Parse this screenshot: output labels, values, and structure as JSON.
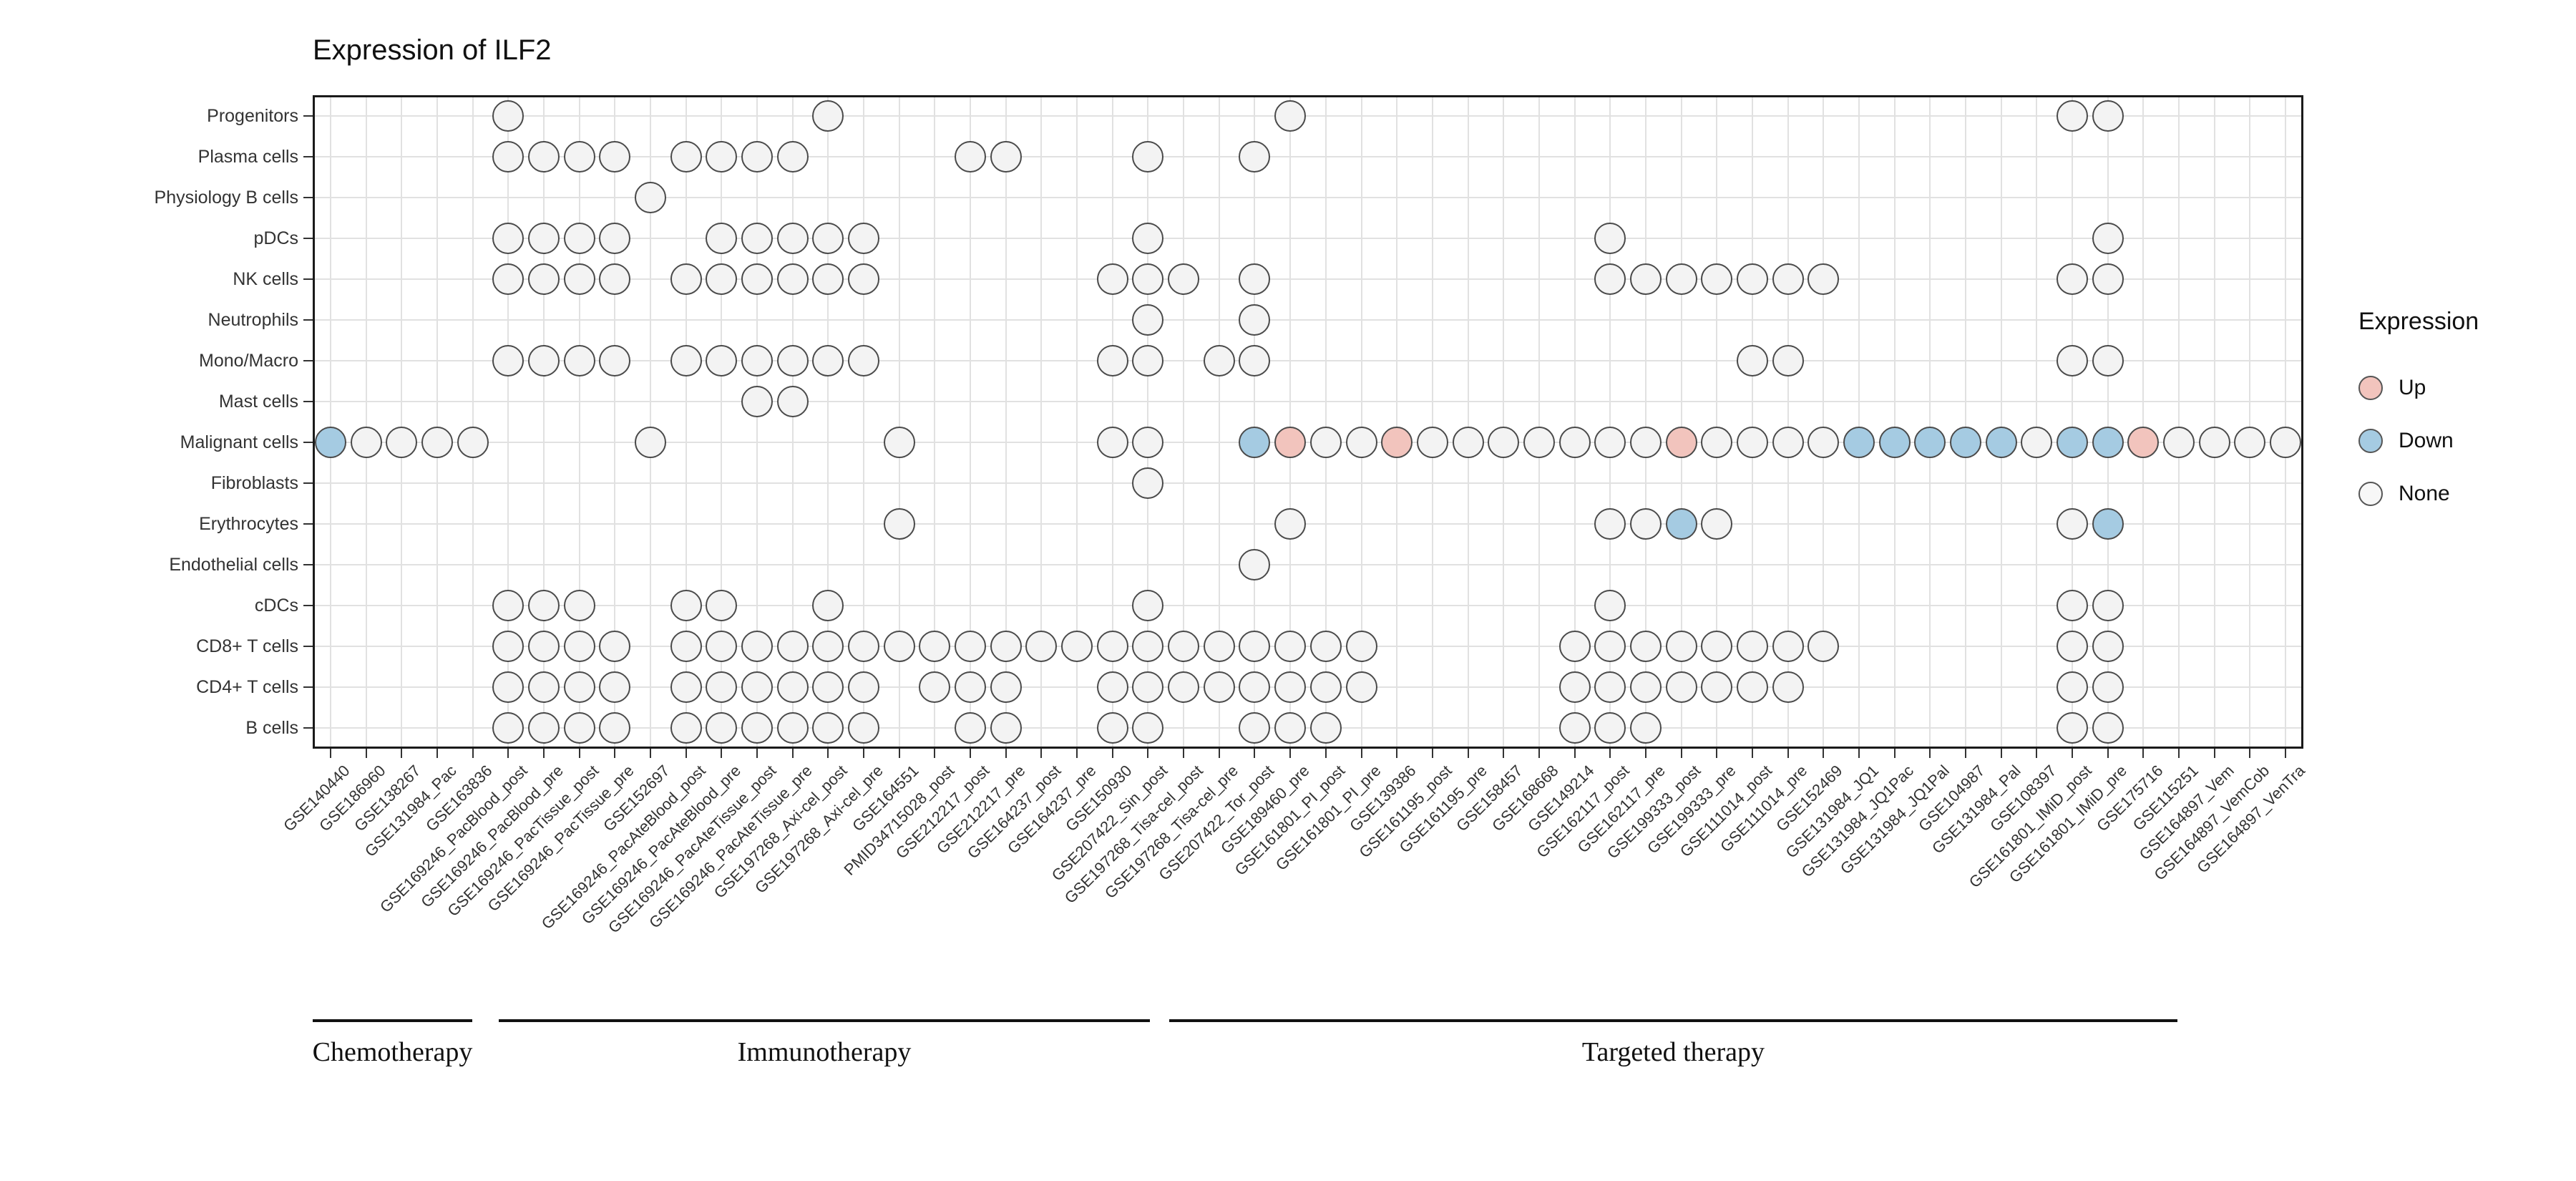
{
  "title": "Expression of ILF2",
  "legend": {
    "title": "Expression",
    "items": [
      {
        "label": "Up",
        "state": "up",
        "color": "#f2c4bd"
      },
      {
        "label": "Down",
        "state": "down",
        "color": "#a5cbe2"
      },
      {
        "label": "None",
        "state": "none",
        "color": "#f7f7f7"
      }
    ],
    "position": "right"
  },
  "colors": {
    "up": "#f2c4bd",
    "down": "#a5cbe2",
    "none": "#f3f3f3",
    "circle_border": "#4a4a4a",
    "grid": "#e1e1e1"
  },
  "chart_data": {
    "type": "scatter",
    "title": "Expression of ILF2",
    "xlabel": "",
    "ylabel": "",
    "grid": "on",
    "legend_position": "right",
    "y_categories": [
      "Progenitors",
      "Plasma cells",
      "Physiology B cells",
      "pDCs",
      "NK cells",
      "Neutrophils",
      "Mono/Macro",
      "Mast cells",
      "Malignant cells",
      "Fibroblasts",
      "Erythrocytes",
      "Endothelial cells",
      "cDCs",
      "CD8+ T cells",
      "CD4+ T cells",
      "B cells"
    ],
    "x_categories": [
      "GSE140440",
      "GSE186960",
      "GSE138267",
      "GSE131984_Pac",
      "GSE163836",
      "GSE169246_PacBlood_post",
      "GSE169246_PacBlood_pre",
      "GSE169246_PacTissue_post",
      "GSE169246_PacTissue_pre",
      "GSE152697",
      "GSE169246_PacAteBlood_post",
      "GSE169246_PacAteBlood_pre",
      "GSE169246_PacAteTissue_post",
      "GSE169246_PacAteTissue_pre",
      "GSE197268_Axi-cel_post",
      "GSE197268_Axi-cel_pre",
      "GSE164551",
      "PMID34715028_post",
      "GSE212217_post",
      "GSE212217_pre",
      "GSE164237_post",
      "GSE164237_pre",
      "GSE150930",
      "GSE207422_Sin_post",
      "GSE197268_Tisa-cel_post",
      "GSE197268_Tisa-cel_pre",
      "GSE207422_Tor_post",
      "GSE189460_pre",
      "GSE161801_PI_post",
      "GSE161801_PI_pre",
      "GSE139386",
      "GSE161195_post",
      "GSE161195_pre",
      "GSE158457",
      "GSE168668",
      "GSE149214",
      "GSE162117_post",
      "GSE162117_pre",
      "GSE199333_post",
      "GSE199333_pre",
      "GSE111014_post",
      "GSE111014_pre",
      "GSE152469",
      "GSE131984_JQ1",
      "GSE131984_JQ1Pac",
      "GSE131984_JQ1Pal",
      "GSE104987",
      "GSE131984_Pal",
      "GSE108397",
      "GSE161801_IMiD_post",
      "GSE161801_IMiD_pre",
      "GSE175716",
      "GSE115251",
      "GSE164897_Vem",
      "GSE164897_VemCob",
      "GSE164897_VenTra"
    ],
    "groups": [
      {
        "label": "Chemotherapy",
        "cols": [
          1,
          5
        ]
      },
      {
        "label": "Immunotherapy",
        "cols": [
          6,
          27
        ]
      },
      {
        "label": "Targeted therapy",
        "cols": [
          28,
          56
        ]
      }
    ],
    "points": [
      {
        "row": "Progenitors",
        "none": [
          6,
          15,
          28,
          50,
          51
        ],
        "up": [],
        "down": []
      },
      {
        "row": "Plasma cells",
        "none": [
          6,
          7,
          8,
          9,
          11,
          12,
          13,
          14,
          19,
          20,
          24,
          27
        ],
        "up": [],
        "down": []
      },
      {
        "row": "Physiology B cells",
        "none": [
          10
        ],
        "up": [],
        "down": []
      },
      {
        "row": "pDCs",
        "none": [
          6,
          7,
          8,
          9,
          12,
          13,
          14,
          15,
          16,
          24,
          37,
          51
        ],
        "up": [],
        "down": []
      },
      {
        "row": "NK cells",
        "none": [
          6,
          7,
          8,
          9,
          11,
          12,
          13,
          14,
          15,
          16,
          23,
          24,
          25,
          27,
          37,
          38,
          39,
          40,
          41,
          42,
          43,
          50,
          51
        ],
        "up": [],
        "down": []
      },
      {
        "row": "Neutrophils",
        "none": [
          24,
          27
        ],
        "up": [],
        "down": []
      },
      {
        "row": "Mono/Macro",
        "none": [
          6,
          7,
          8,
          9,
          11,
          12,
          13,
          14,
          15,
          16,
          23,
          24,
          26,
          27,
          41,
          42,
          50,
          51
        ],
        "up": [],
        "down": []
      },
      {
        "row": "Mast cells",
        "none": [
          13,
          14
        ],
        "up": [],
        "down": []
      },
      {
        "row": "Malignant cells",
        "none": [
          2,
          3,
          4,
          5,
          10,
          17,
          23,
          24,
          29,
          30,
          32,
          33,
          34,
          35,
          36,
          37,
          38,
          40,
          41,
          42,
          43,
          49,
          53,
          54,
          55,
          56
        ],
        "up": [
          28,
          31,
          39,
          52
        ],
        "down": [
          1,
          27,
          44,
          45,
          46,
          47,
          48,
          50,
          51
        ]
      },
      {
        "row": "Fibroblasts",
        "none": [
          24
        ],
        "up": [],
        "down": []
      },
      {
        "row": "Erythrocytes",
        "none": [
          17,
          28,
          37,
          38,
          40,
          50
        ],
        "up": [],
        "down": [
          39,
          51
        ]
      },
      {
        "row": "Endothelial cells",
        "none": [
          27
        ],
        "up": [],
        "down": []
      },
      {
        "row": "cDCs",
        "none": [
          6,
          7,
          8,
          11,
          12,
          15,
          24,
          37,
          50,
          51
        ],
        "up": [],
        "down": []
      },
      {
        "row": "CD8+ T cells",
        "none": [
          6,
          7,
          8,
          9,
          11,
          12,
          13,
          14,
          15,
          16,
          17,
          18,
          19,
          20,
          21,
          22,
          23,
          24,
          25,
          26,
          27,
          28,
          29,
          30,
          36,
          37,
          38,
          39,
          40,
          41,
          42,
          43,
          50,
          51
        ],
        "up": [],
        "down": []
      },
      {
        "row": "CD4+ T cells",
        "none": [
          6,
          7,
          8,
          9,
          11,
          12,
          13,
          14,
          15,
          16,
          18,
          19,
          20,
          23,
          24,
          25,
          26,
          27,
          28,
          29,
          30,
          36,
          37,
          38,
          39,
          40,
          41,
          42,
          50,
          51
        ],
        "up": [],
        "down": []
      },
      {
        "row": "B cells",
        "none": [
          6,
          7,
          8,
          9,
          11,
          12,
          13,
          14,
          15,
          16,
          19,
          20,
          23,
          24,
          27,
          28,
          29,
          36,
          37,
          38,
          50,
          51
        ],
        "up": [],
        "down": []
      }
    ]
  }
}
